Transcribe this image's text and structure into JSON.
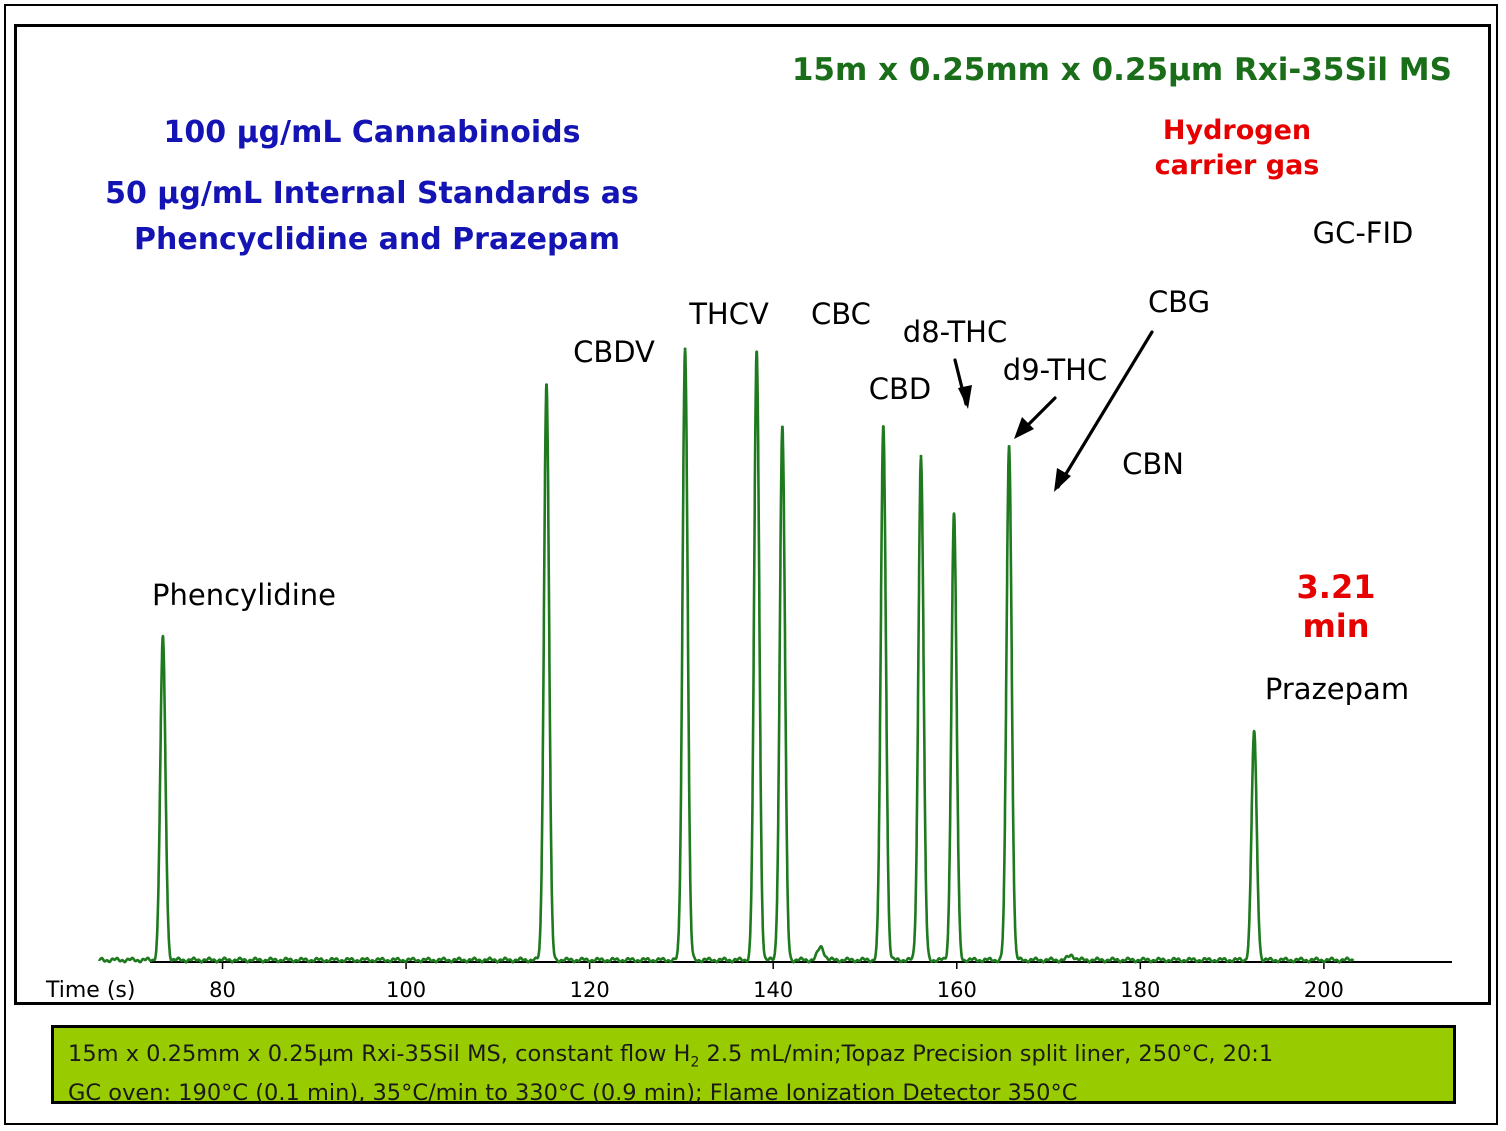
{
  "chart_data": {
    "type": "line",
    "xlabel": "Time (s)",
    "xlim": [
      63,
      204
    ],
    "xticks": [
      80,
      100,
      120,
      140,
      160,
      180,
      200
    ],
    "ylim": [
      0,
      1
    ],
    "grid": false,
    "series_color": "#1f7a1f",
    "peaks": [
      {
        "name": "Phencylidine",
        "t": 73.5,
        "h": 0.99
      },
      {
        "name": "CBDV",
        "t": 115.3,
        "h": 1.77
      },
      {
        "name": "THCV",
        "t": 130.4,
        "h": 1.88
      },
      {
        "name": "CBC",
        "t": 138.2,
        "h": 1.87
      },
      {
        "name": "CBD",
        "t": 141.0,
        "h": 1.64
      },
      {
        "name": "d8-THC",
        "t": 152.0,
        "h": 1.64
      },
      {
        "name": "d9-THC",
        "t": 156.1,
        "h": 1.55
      },
      {
        "name": "CBG",
        "t": 159.7,
        "h": 1.37
      },
      {
        "name": "CBN",
        "t": 165.7,
        "h": 1.58
      },
      {
        "name": "Prazepam",
        "t": 192.4,
        "h": 0.7
      }
    ],
    "minor_bumps": [
      {
        "t": 145.2,
        "h": 0.04
      },
      {
        "t": 172.5,
        "h": 0.015
      }
    ]
  },
  "labels": {
    "column": "15m x 0.25mm x 0.25µm Rxi-35Sil MS",
    "sample_line1": "100 µg/mL Cannabinoids",
    "sample_line2": "50 µg/mL Internal Standards as",
    "sample_line3": "Phencyclidine and Prazepam",
    "carrier_line1": "Hydrogen",
    "carrier_line2": "carrier gas",
    "detector": "GC-FID",
    "runtime_value": "3.21",
    "runtime_unit": "min"
  },
  "colors": {
    "column_title": "#1a6e1a",
    "sample_text": "#1414b4",
    "highlight_red": "#e60000",
    "caption_bg": "#99cc00"
  },
  "caption": {
    "line1_pre": "15m x 0.25mm x 0.25µm Rxi-35Sil MS, constant flow H",
    "line1_sub": "2",
    "line1_post": " 2.5 mL/min;Topaz Precision split liner, 250°C, 20:1",
    "line2": "GC oven: 190°C (0.1 min), 35°C/min to 330°C (0.9 min); Flame Ionization Detector 350°C"
  }
}
